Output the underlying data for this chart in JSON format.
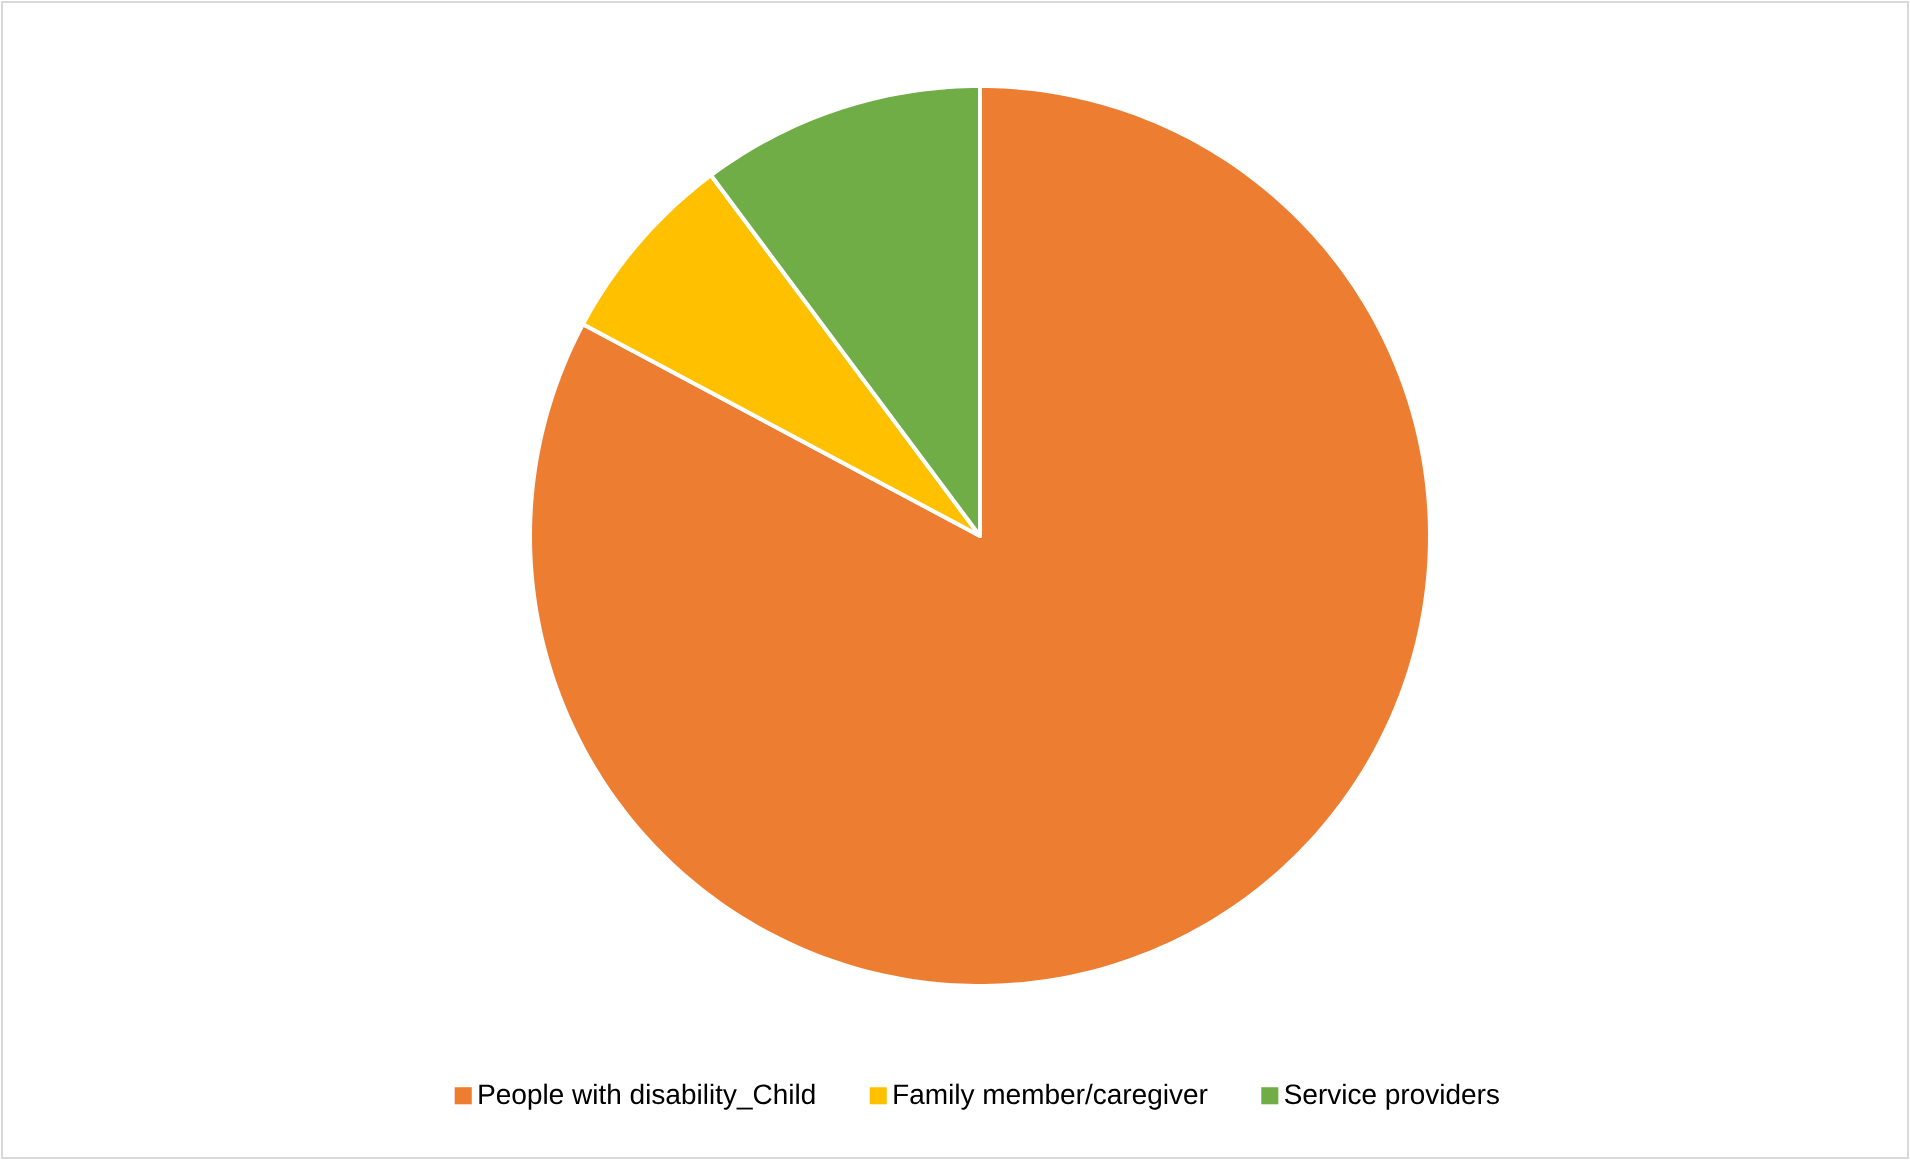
{
  "chart_data": {
    "type": "pie",
    "categories": [
      "People with disability_Child",
      "Family member/caregiver",
      "Service providers"
    ],
    "values": [
      82.8,
      7.0,
      10.2
    ],
    "colors": [
      "#ed7d31",
      "#ffc000",
      "#70ad47"
    ],
    "legend": "bottom"
  }
}
